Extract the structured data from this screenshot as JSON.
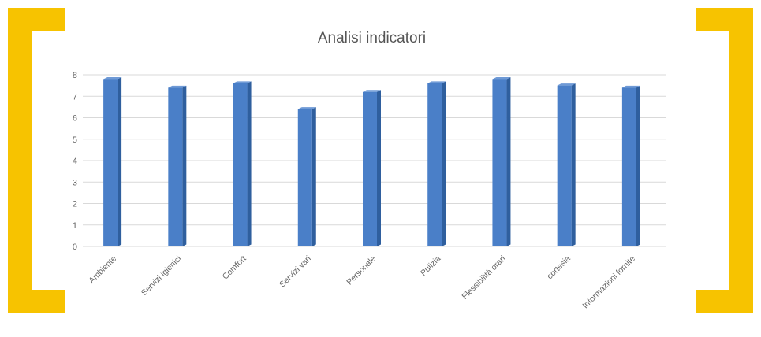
{
  "frame": {
    "bracket_color": "#f7c300"
  },
  "chart_data": {
    "type": "bar",
    "title": "Analisi indicatori",
    "xlabel": "",
    "ylabel": "",
    "categories": [
      "Ambiente",
      "Servizi igienici",
      "Comfort",
      "Servizi vari",
      "Personale",
      "Pulizia",
      "Flessibilità orari",
      "cortesia",
      "Informazioni fornite"
    ],
    "values": [
      7.8,
      7.4,
      7.6,
      6.4,
      7.2,
      7.6,
      7.8,
      7.5,
      7.4
    ],
    "ylim": [
      0,
      8
    ],
    "yticks": [
      0,
      1,
      2,
      3,
      4,
      5,
      6,
      7,
      8
    ],
    "grid": true,
    "legend": "none",
    "bar_color": "#4a7fc8",
    "bar_side_color": "#2f5f9e",
    "bar_top_color": "#6f9ad6",
    "grid_color": "#d9d9d9"
  }
}
